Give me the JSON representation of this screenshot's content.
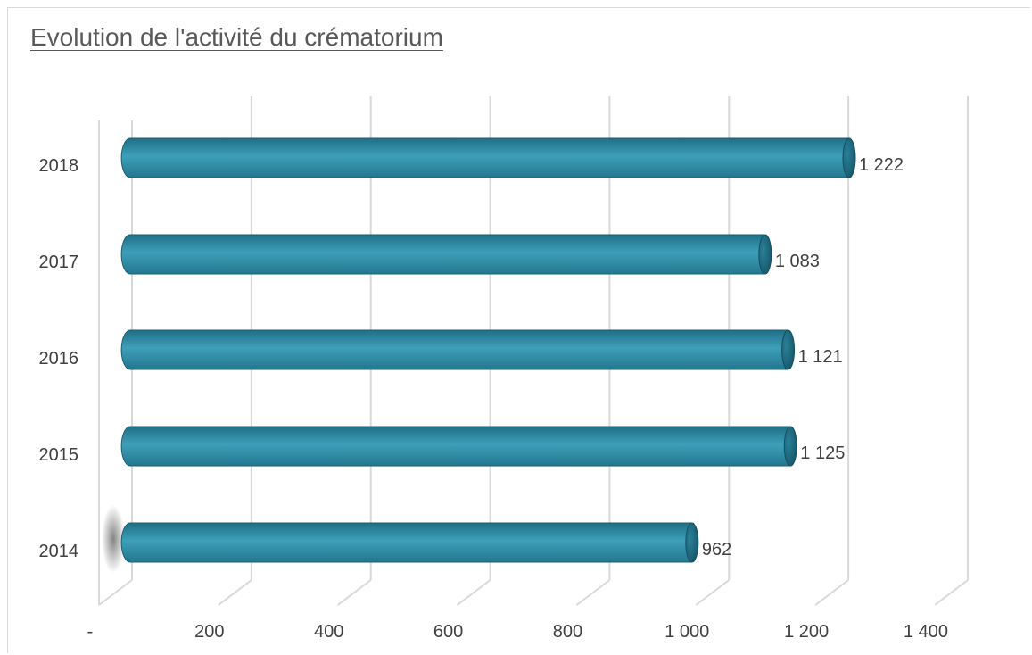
{
  "chart_data": {
    "type": "bar",
    "orientation": "horizontal",
    "title": "Evolution de l'activité du crématorium",
    "categories": [
      "2014",
      "2015",
      "2016",
      "2017",
      "2018"
    ],
    "values": [
      962,
      1125,
      1121,
      1083,
      1222
    ],
    "data_labels": [
      "962",
      "1 125",
      "1 121",
      "1 083",
      "1 222"
    ],
    "xlim": [
      0,
      1400
    ],
    "x_ticks": [
      0,
      200,
      400,
      600,
      800,
      1000,
      1200,
      1400
    ],
    "x_tick_labels": [
      "-",
      "200",
      "400",
      "600",
      "800",
      "1 000",
      "1 200",
      "1 400"
    ],
    "xlabel": "",
    "ylabel": "",
    "grid": true,
    "legend": "none",
    "bar_color": "#2f8ea6",
    "gridline_color": "#d9d9d9"
  }
}
